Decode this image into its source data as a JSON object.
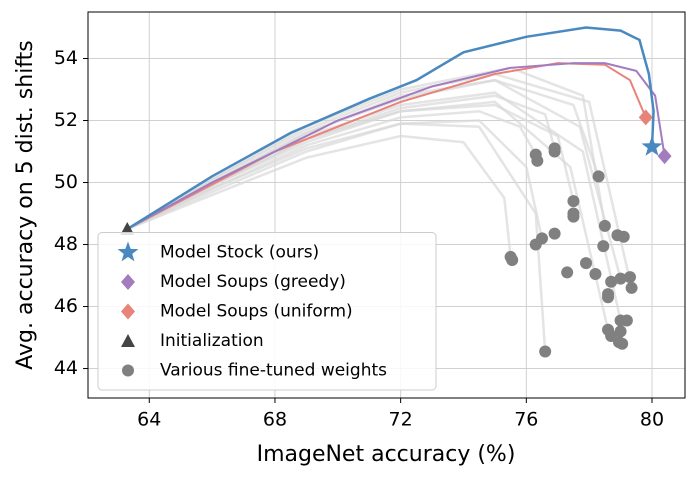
{
  "chart_data": {
    "type": "line",
    "xlabel": "ImageNet accuracy (%)",
    "ylabel": "Avg. accuracy on 5 dist. shifts",
    "xlim": [
      62.05,
      81.05
    ],
    "ylim": [
      43.05,
      55.5
    ],
    "xticks": [
      64,
      68,
      72,
      76,
      80
    ],
    "yticks": [
      44,
      46,
      48,
      50,
      52,
      54
    ],
    "grid": true,
    "legend": "lower left",
    "trajectory_color": "#d9d9d9",
    "trajectories": [
      {
        "x": [
          63.3,
          66,
          69,
          72,
          74.5,
          75.8,
          76.3
        ],
        "values": [
          48.5,
          49.8,
          51.2,
          52.1,
          52.3,
          51.8,
          50.9
        ]
      },
      {
        "x": [
          63.3,
          66,
          69,
          72,
          75,
          76.6,
          76.9
        ],
        "values": [
          48.5,
          49.9,
          51.4,
          52.4,
          52.8,
          52.2,
          51.1
        ]
      },
      {
        "x": [
          63.3,
          66,
          69,
          72,
          75,
          77.5,
          78.3
        ],
        "values": [
          48.5,
          50,
          51.6,
          52.8,
          53.3,
          52.5,
          50.2
        ]
      },
      {
        "x": [
          63.3,
          66,
          69,
          72,
          75,
          77,
          77.5
        ],
        "values": [
          48.5,
          49.9,
          51.3,
          52.3,
          52.5,
          51.5,
          49.4
        ]
      },
      {
        "x": [
          63.3,
          66,
          69,
          72,
          74.5,
          76,
          76.5
        ],
        "values": [
          48.5,
          49.7,
          51,
          51.9,
          52,
          50.5,
          48.2
        ]
      },
      {
        "x": [
          63.3,
          66,
          69,
          72,
          75.5,
          77.8,
          78.5
        ],
        "values": [
          48.5,
          50.1,
          51.8,
          53,
          53.7,
          52.8,
          48.6
        ]
      },
      {
        "x": [
          63.3,
          66,
          69,
          72,
          75,
          77.7,
          79.0
        ],
        "values": [
          48.5,
          50,
          51.6,
          52.7,
          53.3,
          51.8,
          46.9
        ]
      },
      {
        "x": [
          63.3,
          66,
          69,
          72,
          74,
          75.3,
          75.5
        ],
        "values": [
          48.5,
          49.6,
          50.8,
          51.5,
          51.3,
          49.5,
          47.6
        ]
      },
      {
        "x": [
          63.3,
          66,
          69,
          72,
          75,
          77.8,
          79.0
        ],
        "values": [
          48.5,
          50,
          51.5,
          52.5,
          52.9,
          51,
          45.55
        ]
      },
      {
        "x": [
          63.3,
          66,
          69,
          72,
          75,
          77.4,
          78.6
        ],
        "values": [
          48.5,
          49.9,
          51.4,
          52.3,
          52.6,
          50.5,
          45.25
        ]
      },
      {
        "x": [
          63.3,
          66,
          69,
          72,
          74.5,
          76.3,
          76.6
        ],
        "values": [
          48.5,
          49.8,
          51.1,
          51.9,
          51.8,
          49,
          44.55
        ]
      },
      {
        "x": [
          63.3,
          66,
          69,
          72,
          75,
          78,
          79.35
        ],
        "values": [
          48.5,
          50.1,
          51.7,
          52.9,
          53.5,
          52.6,
          46.6
        ]
      }
    ],
    "series": [
      {
        "name": "Model Stock (ours)",
        "color": "#4a89c0",
        "marker": "star",
        "mode": "line",
        "x": [
          63.3,
          66,
          68.5,
          71,
          72.5,
          74,
          76,
          77.9,
          79,
          79.6,
          79.9,
          80.05,
          80.0
        ],
        "values": [
          48.5,
          50.2,
          51.6,
          52.7,
          53.3,
          54.2,
          54.7,
          55.0,
          54.9,
          54.6,
          53.5,
          52.3,
          51.15
        ]
      },
      {
        "name": "Model Soups (greedy)",
        "color": "#a37cbf",
        "marker": "diamond",
        "mode": "line",
        "x": [
          63.3,
          66,
          70,
          73,
          75.5,
          77.5,
          78.5,
          79.5,
          80.1,
          80.4
        ],
        "values": [
          48.5,
          50.0,
          52.0,
          53.1,
          53.7,
          53.85,
          53.85,
          53.6,
          52.8,
          50.85
        ]
      },
      {
        "name": "Model Soups (uniform)",
        "color": "#e8837a",
        "marker": "diamond",
        "mode": "line",
        "x": [
          63.3,
          68,
          72,
          75,
          77,
          78.5,
          79.3,
          79.8
        ],
        "values": [
          48.5,
          51.0,
          52.6,
          53.5,
          53.85,
          53.8,
          53.3,
          52.1
        ]
      },
      {
        "name": "Initialization",
        "color": "#444444",
        "marker": "triangle",
        "mode": "markers",
        "x": [
          63.3
        ],
        "values": [
          48.5
        ]
      },
      {
        "name": "Various fine-tuned weights",
        "color": "#808080",
        "marker": "circle",
        "mode": "markers",
        "x": [
          76.3,
          76.35,
          76.9,
          76.9,
          78.3,
          77.5,
          77.5,
          77.5,
          78.5,
          78.9,
          79.1,
          78.45,
          76.5,
          76.3,
          76.9,
          77.9,
          75.5,
          75.55,
          77.3,
          78.2,
          78.7,
          79.0,
          79.3,
          79.35,
          78.6,
          78.6,
          79.0,
          79.2,
          78.6,
          78.7,
          79.0,
          78.95,
          79.05,
          76.6
        ],
        "values": [
          50.9,
          50.7,
          51.1,
          51.0,
          50.2,
          49.4,
          49.0,
          48.9,
          48.6,
          48.3,
          48.25,
          47.95,
          48.2,
          48.0,
          48.35,
          47.4,
          47.6,
          47.5,
          47.1,
          47.05,
          46.8,
          46.9,
          46.95,
          46.6,
          46.4,
          46.3,
          45.55,
          45.55,
          45.25,
          45.05,
          45.2,
          44.85,
          44.8,
          44.55
        ]
      }
    ]
  }
}
